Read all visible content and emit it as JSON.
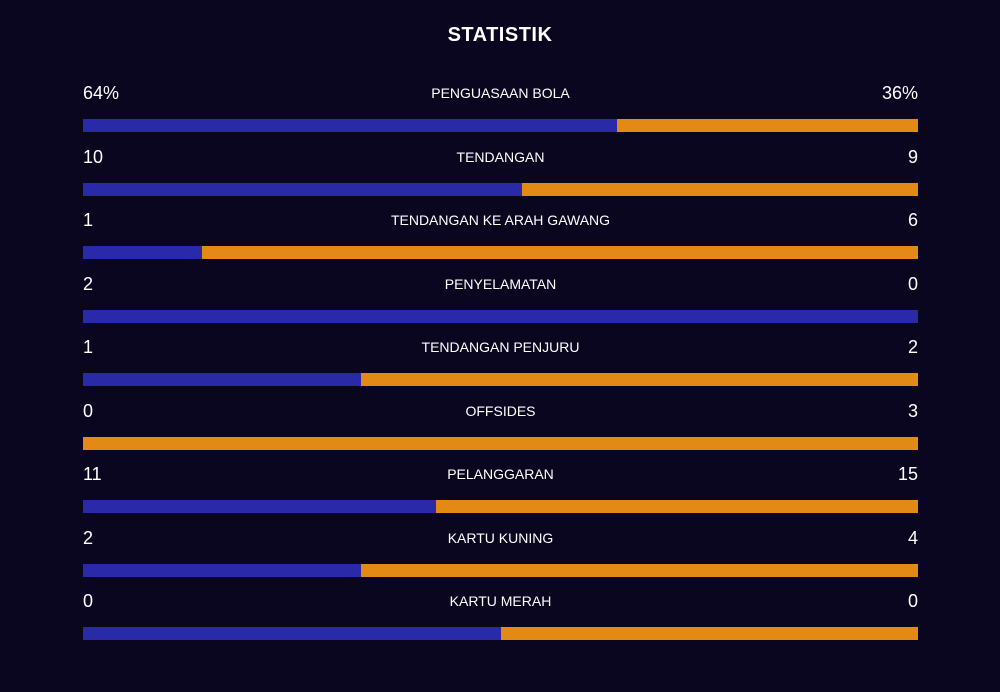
{
  "title": "STATISTIK",
  "colors": {
    "background": "#0a0620",
    "home": "#2a2aa8",
    "away": "#e38a16"
  },
  "stats": [
    {
      "label": "PENGUASAAN BOLA",
      "home_text": "64%",
      "away_text": "36%",
      "home_share": 0.64
    },
    {
      "label": "TENDANGAN",
      "home_text": "10",
      "away_text": "9",
      "home_share": 0.526
    },
    {
      "label": "TENDANGAN KE ARAH GAWANG",
      "home_text": "1",
      "away_text": "6",
      "home_share": 0.143
    },
    {
      "label": "PENYELAMATAN",
      "home_text": "2",
      "away_text": "0",
      "home_share": 1.0
    },
    {
      "label": "TENDANGAN PENJURU",
      "home_text": "1",
      "away_text": "2",
      "home_share": 0.333
    },
    {
      "label": "OFFSIDES",
      "home_text": "0",
      "away_text": "3",
      "home_share": 0.0
    },
    {
      "label": "PELANGGARAN",
      "home_text": "11",
      "away_text": "15",
      "home_share": 0.423
    },
    {
      "label": "KARTU KUNING",
      "home_text": "2",
      "away_text": "4",
      "home_share": 0.333
    },
    {
      "label": "KARTU MERAH",
      "home_text": "0",
      "away_text": "0",
      "home_share": 0.5
    }
  ]
}
